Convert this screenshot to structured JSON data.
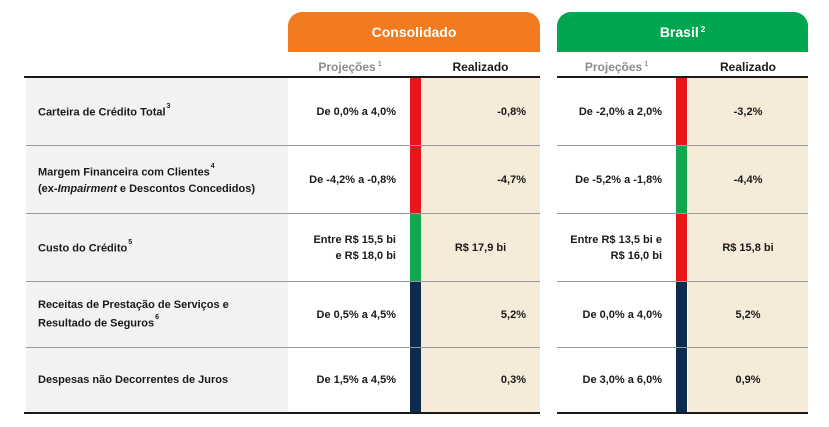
{
  "headers": {
    "consolidado": {
      "title": "Consolidado",
      "note": ""
    },
    "brasil": {
      "title": "Brasil",
      "note": "2"
    }
  },
  "columns": {
    "projecoes": "Projeções",
    "projecoes_note": "1",
    "realizado": "Realizado"
  },
  "rows": [
    {
      "label_line1": "Carteira de Crédito Total",
      "label_note": "3",
      "consolidado_proj": [
        "De 0,0% a 4,0%"
      ],
      "consolidado_status": "red",
      "consolidado_real": "-0,8%",
      "brasil_proj": [
        "De -2,0% a 2,0%"
      ],
      "brasil_status": "red",
      "brasil_real": "-3,2%"
    },
    {
      "label_line1": "Margem Financeira com Clientes",
      "label_note": "4",
      "label_line2_prefix": "(ex-",
      "label_line2_italic": "Impairment",
      "label_line2_suffix": " e Descontos Concedidos)",
      "consolidado_proj": [
        "De -4,2% a -0,8%"
      ],
      "consolidado_status": "red",
      "consolidado_real": "-4,7%",
      "brasil_proj": [
        "De -5,2% a -1,8%"
      ],
      "brasil_status": "green",
      "brasil_real": "-4,4%"
    },
    {
      "label_line1": "Custo do Crédito",
      "label_note": "5",
      "consolidado_proj": [
        "Entre R$ 15,5 bi",
        "e R$ 18,0 bi"
      ],
      "consolidado_status": "green",
      "consolidado_real": "R$ 17,9 bi",
      "brasil_proj": [
        "Entre R$ 13,5 bi e",
        "R$ 16,0 bi"
      ],
      "brasil_status": "red",
      "brasil_real": "R$ 15,8 bi"
    },
    {
      "label_line1": "Receitas de Prestação de Serviços e",
      "label_line2": "Resultado de Seguros",
      "label_note": "6",
      "consolidado_proj": [
        "De 0,5% a 4,5%"
      ],
      "consolidado_status": "navy",
      "consolidado_real": "5,2%",
      "brasil_proj": [
        "De 0,0% a 4,0%"
      ],
      "brasil_status": "navy",
      "brasil_real": "5,2%"
    },
    {
      "label_line1": "Despesas não Decorrentes de Juros",
      "consolidado_proj": [
        "De 1,5% a 4,5%"
      ],
      "consolidado_status": "navy",
      "consolidado_real": "0,3%",
      "brasil_proj": [
        "De 3,0% a 6,0%"
      ],
      "brasil_status": "navy",
      "brasil_real": "0,9%"
    }
  ],
  "colors": {
    "consolidado": "#f27b20",
    "brasil": "#00a650",
    "red": "#e8161b",
    "green": "#10a84e",
    "navy": "#0d2c4d",
    "realizado_bg": "#f6ead9",
    "label_bg": "#f2f2f2"
  }
}
